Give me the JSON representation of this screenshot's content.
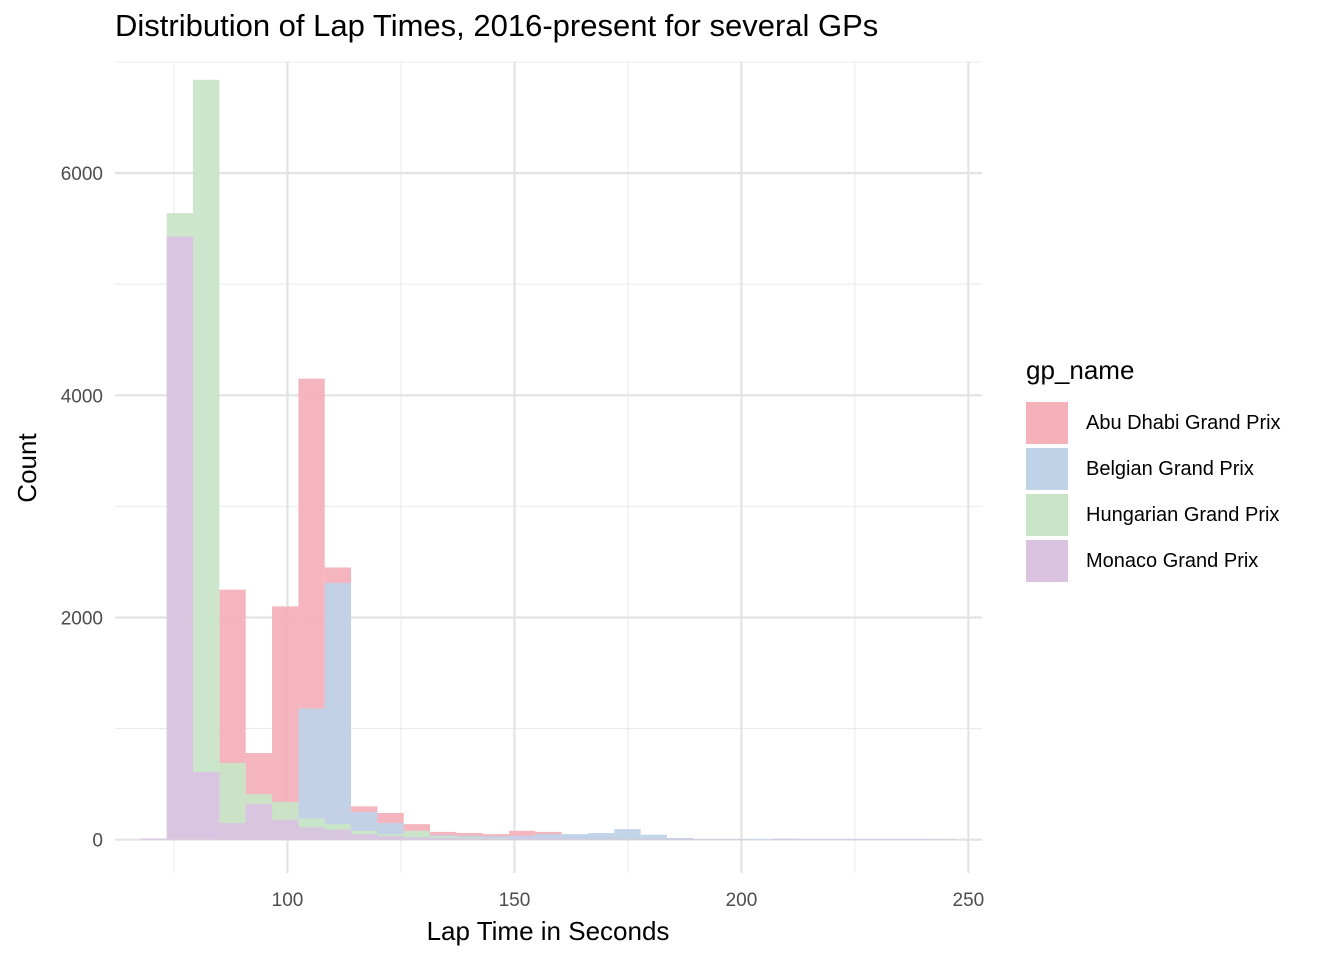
{
  "chart_data": {
    "type": "bar",
    "title": "Distribution of Lap Times, 2016-present for several GPs",
    "xlabel": "Lap Time in Seconds",
    "ylabel": "Count",
    "xlim": [
      62,
      253
    ],
    "ylim": [
      -300,
      7000
    ],
    "xticks": [
      100,
      150,
      200,
      250
    ],
    "yticks": [
      0,
      2000,
      4000,
      6000
    ],
    "grid": true,
    "legend": {
      "title": "gp_name",
      "position": "right"
    },
    "bin_width": 5.8,
    "x": [
      70.5,
      76.3,
      82.1,
      87.9,
      93.7,
      99.5,
      105.3,
      111.1,
      116.9,
      122.7,
      128.5,
      134.3,
      140.1,
      145.9,
      151.7,
      157.5,
      163.3,
      169.1,
      174.9,
      180.7,
      186.5,
      192.3,
      198.1,
      203.9,
      209.7,
      215.5,
      221.3,
      227.1,
      232.9,
      238.7,
      244.5
    ],
    "series": [
      {
        "name": "Abu Dhabi Grand Prix",
        "color": "#F4B1BA",
        "values": [
          0,
          0,
          0,
          2250,
          780,
          2100,
          4150,
          2450,
          300,
          240,
          140,
          70,
          60,
          50,
          80,
          70,
          40,
          30,
          20,
          10,
          5,
          5,
          5,
          0,
          0,
          0,
          0,
          0,
          0,
          0,
          0
        ]
      },
      {
        "name": "Belgian Grand Prix",
        "color": "#BFD3E8",
        "values": [
          0,
          0,
          0,
          0,
          0,
          0,
          1180,
          2310,
          250,
          150,
          60,
          40,
          35,
          30,
          35,
          50,
          50,
          60,
          95,
          45,
          15,
          5,
          5,
          5,
          10,
          5,
          5,
          5,
          5,
          5,
          0
        ]
      },
      {
        "name": "Hungarian Grand Prix",
        "color": "#C8E5C7",
        "values": [
          0,
          5640,
          6840,
          690,
          410,
          340,
          190,
          140,
          80,
          50,
          80,
          30,
          20,
          15,
          10,
          10,
          5,
          5,
          5,
          5,
          0,
          0,
          0,
          0,
          0,
          0,
          0,
          0,
          0,
          0,
          0
        ]
      },
      {
        "name": "Monaco Grand Prix",
        "color": "#D9C3E1",
        "values": [
          10,
          5430,
          610,
          150,
          320,
          180,
          110,
          90,
          50,
          30,
          20,
          15,
          10,
          10,
          10,
          10,
          5,
          5,
          5,
          5,
          5,
          0,
          0,
          0,
          5,
          5,
          5,
          5,
          5,
          5,
          5
        ]
      }
    ]
  }
}
